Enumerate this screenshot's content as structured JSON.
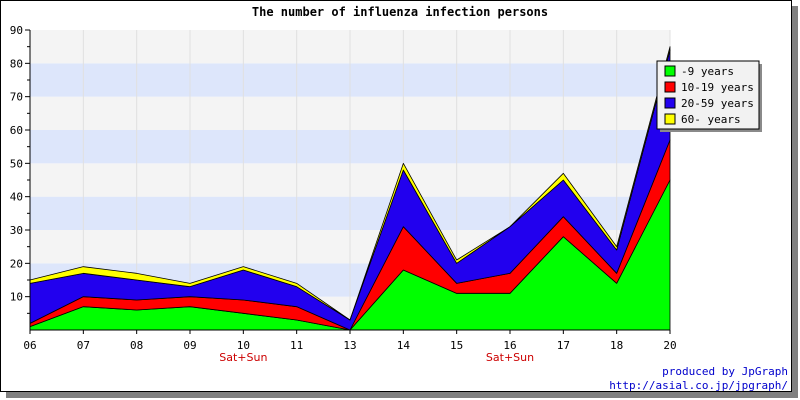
{
  "chart_data": {
    "type": "area",
    "stacked": true,
    "title": "The number of influenza infection persons",
    "categories": [
      "06",
      "07",
      "08",
      "09",
      "10",
      "11",
      "13",
      "14",
      "15",
      "16",
      "17",
      "18",
      "20"
    ],
    "weekend_note": {
      "label": "Sat+Sun",
      "categories": [
        "10",
        "16"
      ]
    },
    "ylim": [
      0,
      90
    ],
    "yticks": [
      10,
      20,
      30,
      40,
      50,
      60,
      70,
      80,
      90
    ],
    "grid": true,
    "legend_position": "top-right",
    "series": [
      {
        "name": "-9 years",
        "color": "#00ff00",
        "values": [
          1,
          7,
          6,
          7,
          5,
          3,
          0,
          18,
          11,
          11,
          28,
          14,
          45
        ]
      },
      {
        "name": "10-19 years",
        "color": "#ff0000",
        "values": [
          1,
          3,
          3,
          3,
          4,
          4,
          0,
          13,
          3,
          6,
          6,
          3,
          12
        ]
      },
      {
        "name": "20-59 years",
        "color": "#2200ee",
        "values": [
          12,
          7,
          6,
          3,
          9,
          6,
          3,
          17,
          6,
          14,
          11,
          7,
          27
        ]
      },
      {
        "name": "60- years",
        "color": "#ffff00",
        "values": [
          1,
          2,
          2,
          1,
          1,
          1,
          0,
          2,
          1,
          0,
          2,
          1,
          1
        ]
      }
    ]
  },
  "credit": {
    "line1": "produced by JpGraph",
    "line2": "http://asial.co.jp/jpgraph/"
  }
}
